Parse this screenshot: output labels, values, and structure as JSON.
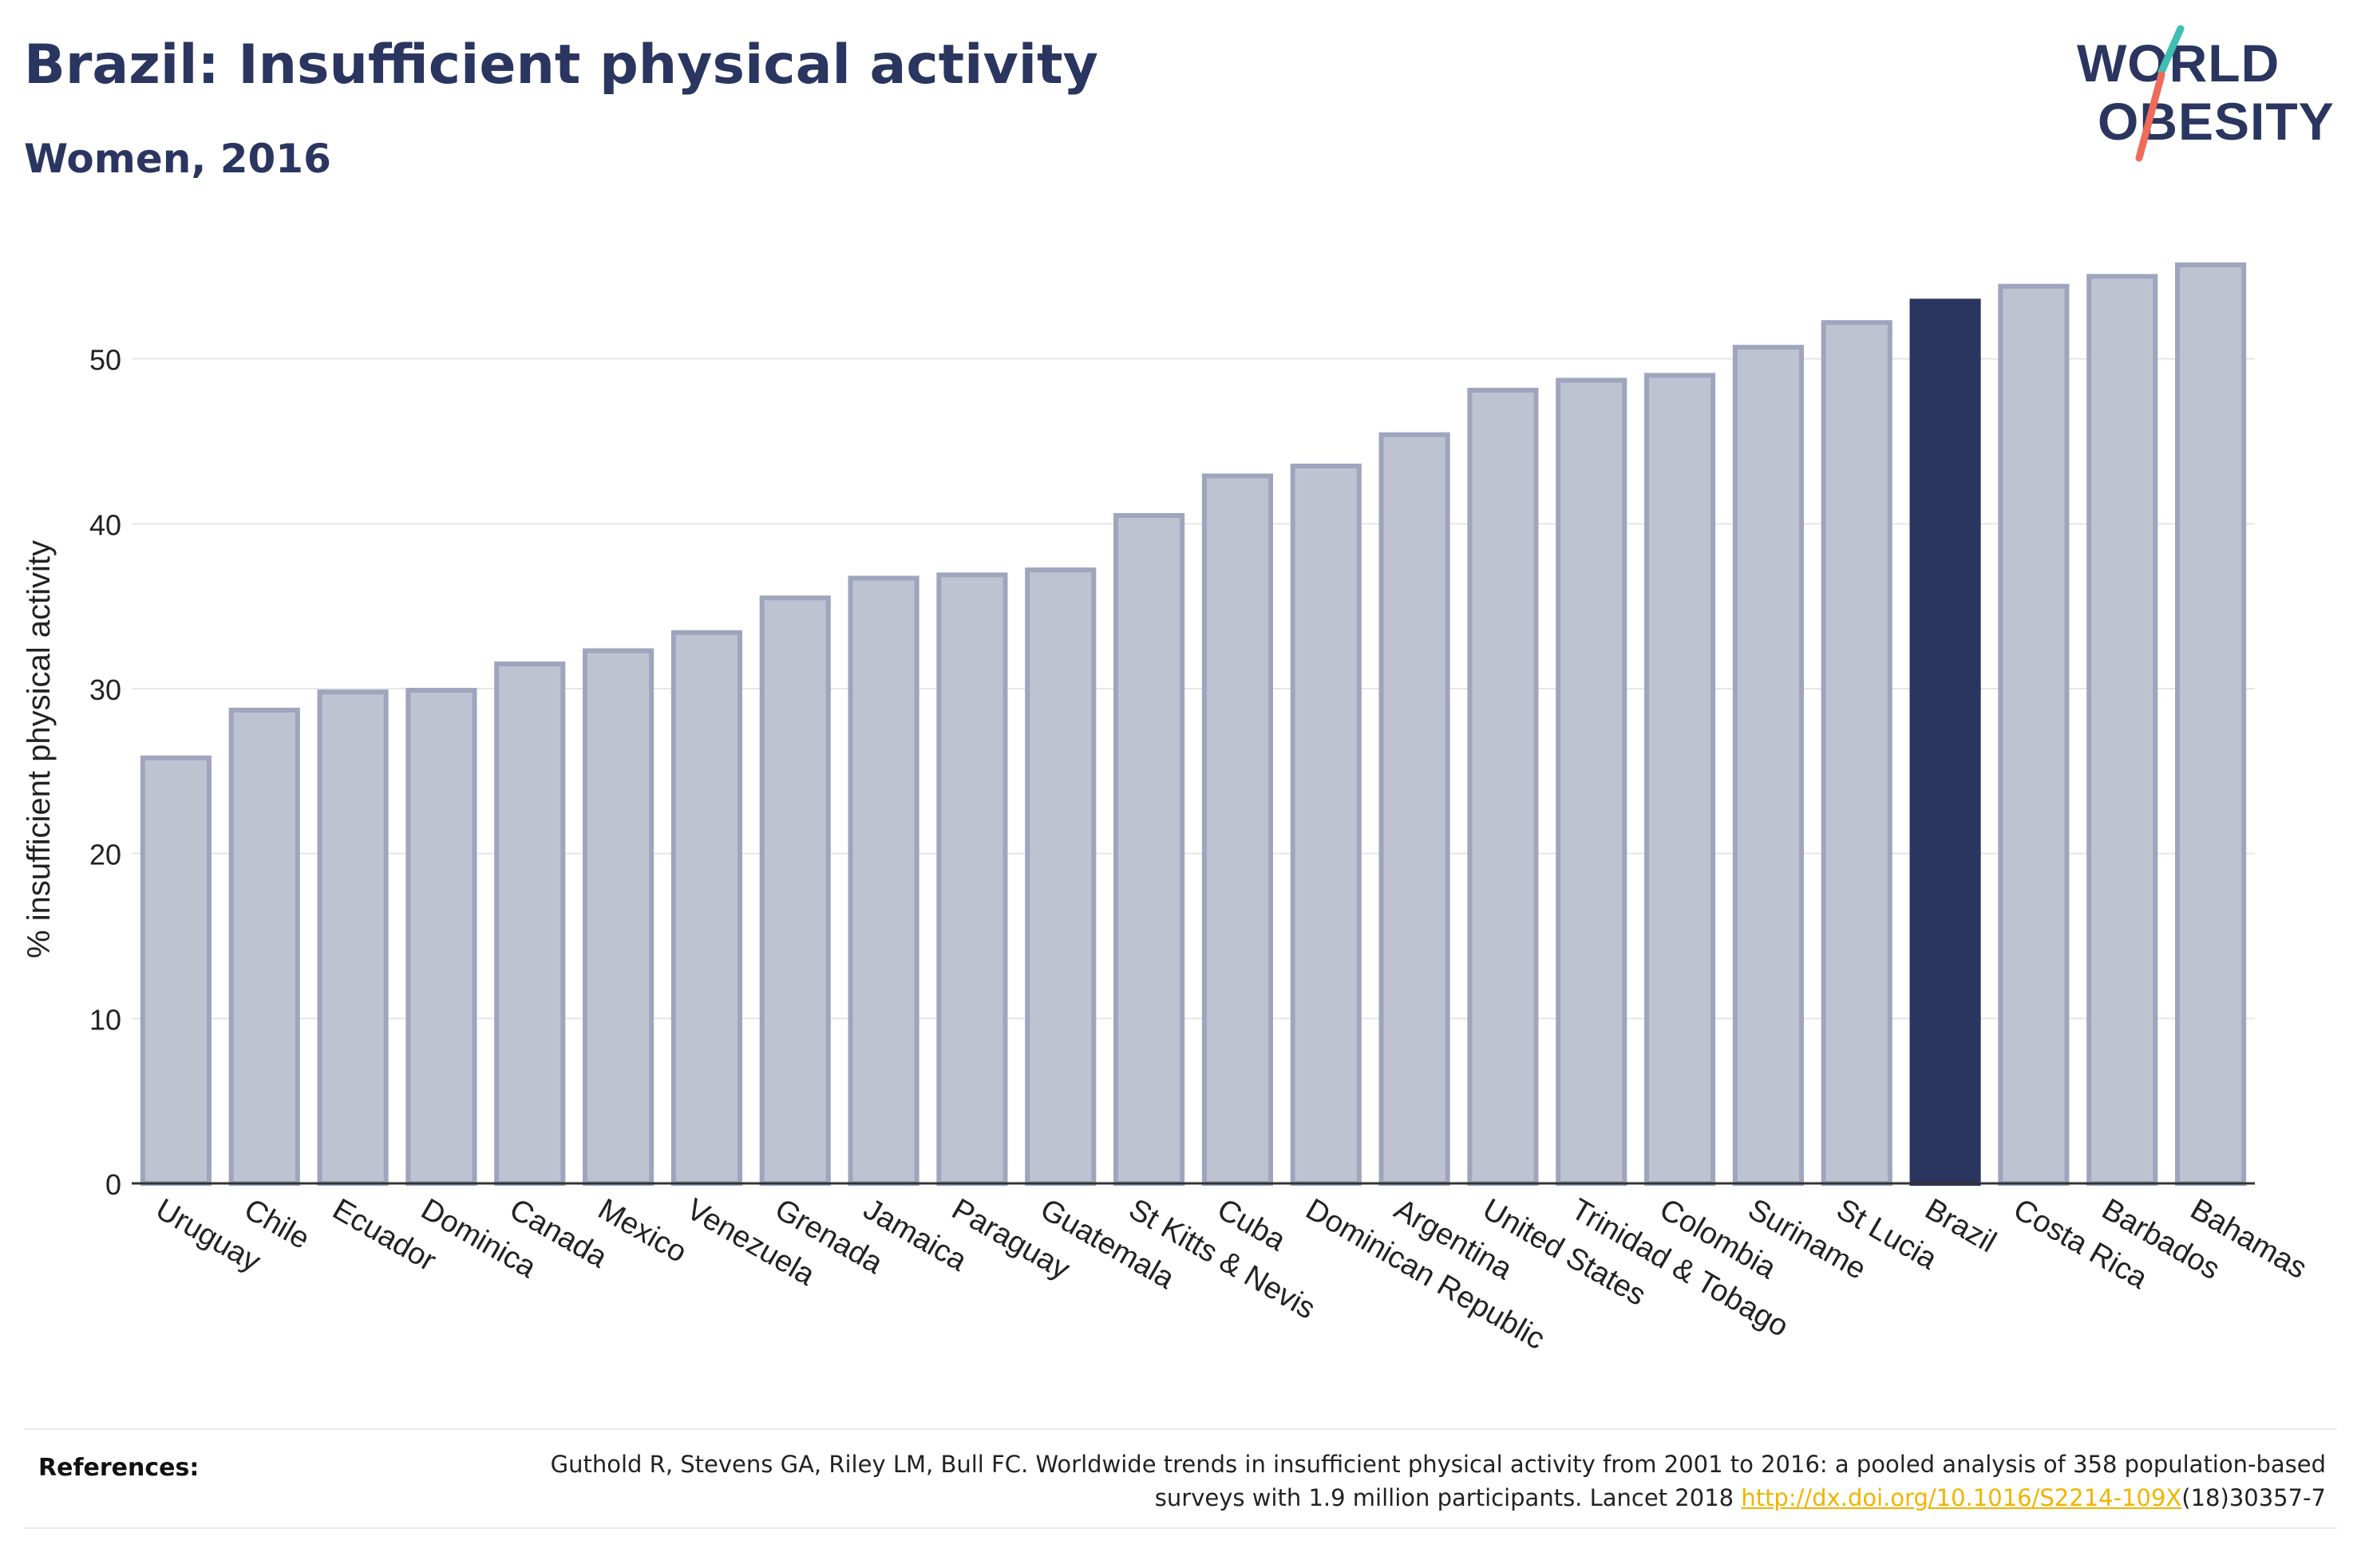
{
  "header": {
    "title": "Brazil: Insufficient physical activity",
    "subtitle": "Women, 2016"
  },
  "logo": {
    "line1": "WORLD",
    "line2": "OBESITY",
    "colors": {
      "text": "#2a3560",
      "teal": "#3fbfb0",
      "coral": "#ef6b5a"
    }
  },
  "chart_data": {
    "type": "bar",
    "title": "Brazil: Insufficient physical activity",
    "subtitle": "Women, 2016",
    "xlabel": "",
    "ylabel": "% insufficient physical activity",
    "ylim": [
      0,
      57
    ],
    "yticks": [
      0,
      10,
      20,
      30,
      40,
      50
    ],
    "grid": true,
    "highlight": "Brazil",
    "colors": {
      "bar": "#bfc3d1",
      "bar_stroke": "#9ea5bd",
      "highlight": "#2a3560",
      "grid": "#e6e6e6",
      "axis": "#333333"
    },
    "categories": [
      "Uruguay",
      "Chile",
      "Ecuador",
      "Dominica",
      "Canada",
      "Mexico",
      "Venezuela",
      "Grenada",
      "Jamaica",
      "Paraguay",
      "Guatemala",
      "St Kitts & Nevis",
      "Cuba",
      "Dominican Republic",
      "Argentina",
      "United States",
      "Trinidad & Tobago",
      "Colombia",
      "Suriname",
      "St Lucia",
      "Brazil",
      "Costa Rica",
      "Barbados",
      "Bahamas"
    ],
    "values": [
      25.8,
      28.7,
      29.8,
      29.9,
      31.5,
      32.3,
      33.4,
      35.5,
      36.7,
      36.9,
      37.2,
      40.5,
      42.9,
      43.5,
      45.4,
      48.1,
      48.7,
      49.0,
      50.7,
      52.2,
      53.5,
      54.4,
      55.0,
      55.7
    ]
  },
  "references": {
    "label": "References:",
    "text_before": "Guthold R, Stevens GA, Riley LM, Bull FC. Worldwide trends in insufficient physical activity from 2001 to 2016: a pooled analysis of 358 population-based surveys with 1.9 million participants. Lancet 2018 ",
    "link_text": "http://dx.doi.org/10.1016/S2214-109X",
    "text_after": "(18)30357-7"
  }
}
